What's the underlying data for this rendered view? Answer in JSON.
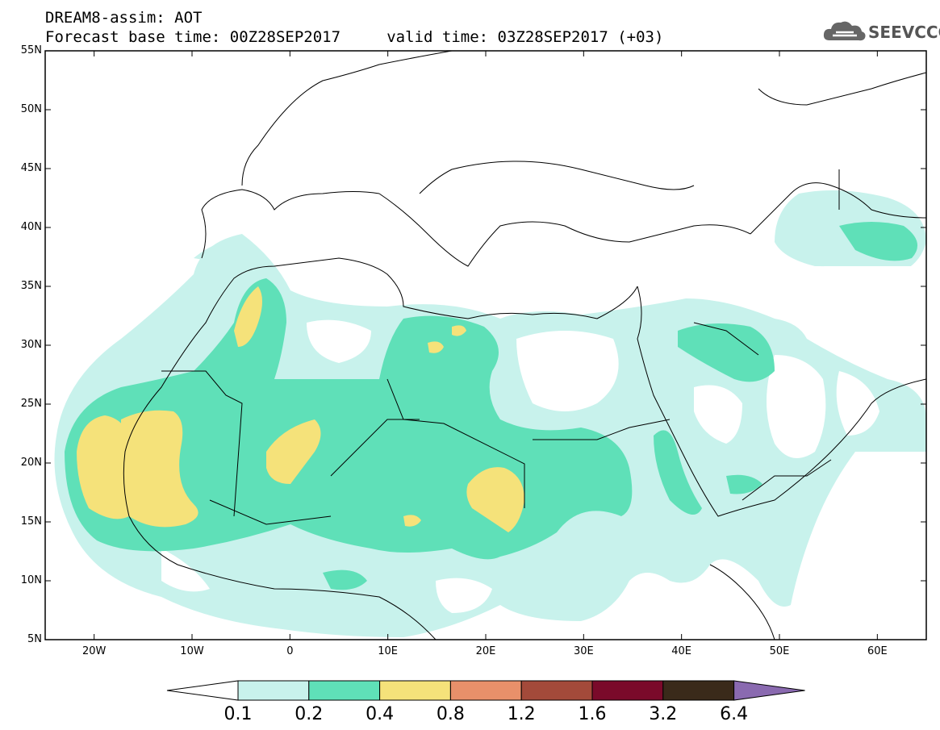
{
  "header": {
    "line1": "DREAM8-assim: AOT",
    "line2": "Forecast base time: 00Z28SEP2017     valid time: 03Z28SEP2017 (+03)"
  },
  "logo": {
    "text": "SEEVCCC",
    "icon": "cloud-icon"
  },
  "map": {
    "lat_labels": [
      "55N",
      "50N",
      "45N",
      "40N",
      "35N",
      "30N",
      "25N",
      "20N",
      "15N",
      "10N",
      "5N"
    ],
    "lon_labels": [
      "20W",
      "10W",
      "0",
      "10E",
      "20E",
      "30E",
      "40E",
      "50E",
      "60E"
    ],
    "lat_range": [
      5,
      55
    ],
    "lon_range": [
      -25,
      65
    ]
  },
  "colorbar": {
    "labels": [
      "0.1",
      "0.2",
      "0.4",
      "0.8",
      "1.2",
      "1.6",
      "3.2",
      "6.4"
    ],
    "colors": [
      "#ffffff",
      "#c8f2ec",
      "#5fe0b8",
      "#f5e27a",
      "#e8906a",
      "#a34a3a",
      "#7a0a2a",
      "#3a2a1a",
      "#8a6ab0"
    ]
  },
  "palette": {
    "c1": "#c8f2ec",
    "c2": "#5fe0b8",
    "c3": "#f5e27a"
  }
}
